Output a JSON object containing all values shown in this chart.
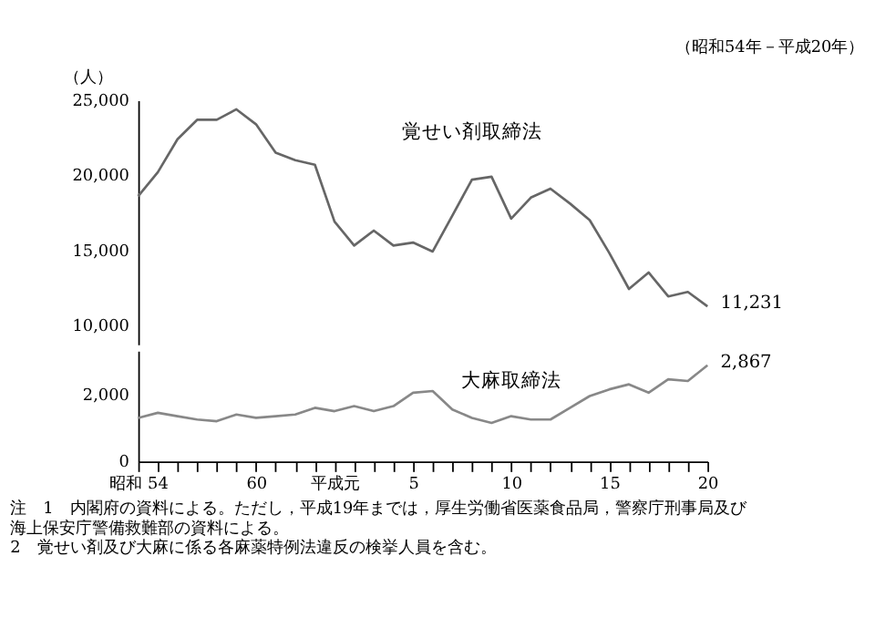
{
  "chart_data": [
    {
      "type": "line",
      "subtitle": "（昭和54年－平成20年）",
      "ylabel": "（人）",
      "categories": [
        null,
        null,
        null,
        null,
        null,
        null,
        null,
        null,
        null,
        null,
        null,
        null,
        null,
        null,
        null,
        null,
        null,
        null,
        null,
        null,
        null,
        null,
        null,
        null,
        null,
        null,
        null,
        null,
        null,
        null
      ],
      "series": [
        {
          "name": "覚せい剤取締法",
          "color": "#666666",
          "values": [
            18600,
            20200,
            22400,
            23700,
            23700,
            24400,
            23400,
            21500,
            21000,
            20700,
            16900,
            15300,
            16300,
            15300,
            15500,
            14900,
            17300,
            19700,
            19900,
            17100,
            18500,
            19100,
            18100,
            17000,
            14800,
            12400,
            13500,
            11900,
            12200,
            11231
          ],
          "value_labels": [
            null,
            null,
            null,
            null,
            null,
            null,
            null,
            null,
            null,
            null,
            null,
            null,
            null,
            null,
            null,
            null,
            null,
            null,
            null,
            null,
            null,
            null,
            null,
            null,
            null,
            null,
            null,
            null,
            null,
            "11,231"
          ]
        }
      ],
      "ylim": [
        8700,
        25000
      ],
      "yticks": [
        {
          "value": 10000,
          "label": "10,000"
        },
        {
          "value": 15000,
          "label": "15,000"
        },
        {
          "value": 20000,
          "label": "20,000"
        },
        {
          "value": 25000,
          "label": "25,000"
        }
      ],
      "tick_labels": "y",
      "grid": false,
      "line_style": "solid",
      "marker": "none"
    },
    {
      "type": "line",
      "categories": [
        "昭和 54",
        null,
        null,
        null,
        null,
        null,
        "60",
        null,
        null,
        null,
        "平成元",
        null,
        null,
        null,
        "5",
        null,
        null,
        null,
        null,
        "10",
        null,
        null,
        null,
        null,
        "15",
        null,
        null,
        null,
        null,
        "20"
      ],
      "series": [
        {
          "name": "大麻取締法",
          "color": "#888888",
          "values": [
            1300,
            1450,
            1350,
            1250,
            1200,
            1400,
            1300,
            1350,
            1400,
            1600,
            1500,
            1650,
            1500,
            1650,
            2050,
            2100,
            1550,
            1300,
            1150,
            1350,
            1250,
            1250,
            1600,
            1950,
            2150,
            2300,
            2050,
            2450,
            2400,
            2867
          ],
          "value_labels": [
            null,
            null,
            null,
            null,
            null,
            null,
            null,
            null,
            null,
            null,
            null,
            null,
            null,
            null,
            null,
            null,
            null,
            null,
            null,
            null,
            null,
            null,
            null,
            null,
            null,
            null,
            null,
            null,
            null,
            "2,867"
          ]
        }
      ],
      "ylim": [
        0,
        3300
      ],
      "yticks": [
        0,
        {
          "value": 2000,
          "label": "2,000"
        }
      ],
      "grid": false,
      "line_style": "solid",
      "marker": "none",
      "annotations": [
        "注　1　内閣府の資料による。ただし，平成19年までは，厚生労働省医薬食品局，警察庁刑事局及び海上保安庁警備救難部の資料による。",
        "　　2　覚せい剤及び大麻に係る各麻薬特例法違反の検挙人員を含む。"
      ]
    }
  ]
}
